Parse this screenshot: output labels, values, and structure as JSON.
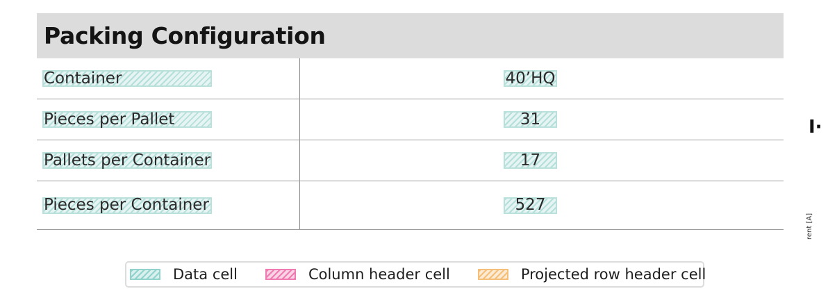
{
  "title": "Packing Configuration",
  "rows": [
    {
      "label": "Container",
      "value": "40’HQ"
    },
    {
      "label": "Pieces per Pallet",
      "value": "31"
    },
    {
      "label": "Pallets per Container",
      "value": "17"
    },
    {
      "label": "Pieces per Container",
      "value": "527"
    }
  ],
  "side": {
    "mark": "I·",
    "text": "rent [A]"
  },
  "legend": {
    "items": [
      {
        "label": "Data cell",
        "color": "#8fd3cc"
      },
      {
        "label": "Column header cell",
        "color": "#f07ab2"
      },
      {
        "label": "Projected row header cell",
        "color": "#f5bf7a"
      }
    ]
  }
}
